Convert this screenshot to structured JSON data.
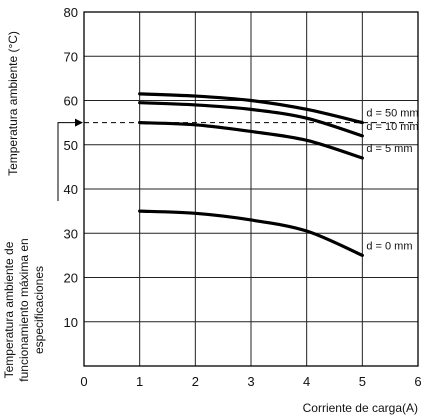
{
  "chart_data": {
    "type": "line",
    "xlabel": "Corriente de carga(A)",
    "ylabel": "Temperatura ambiente (°C)",
    "spec_label_lines": [
      "Temperatura ambiente de",
      "funcionamiento máxima en",
      "especificaciones"
    ],
    "x_ticks": [
      0,
      1,
      2,
      3,
      4,
      5,
      6
    ],
    "y_ticks": [
      10,
      20,
      30,
      40,
      50,
      60,
      70,
      80
    ],
    "xlim": [
      0,
      6
    ],
    "ylim": [
      0,
      80
    ],
    "grid": true,
    "series": [
      {
        "name": "d = 50 mm",
        "x": [
          1,
          2,
          3,
          4,
          5
        ],
        "y": [
          61.5,
          61,
          60,
          58,
          55
        ]
      },
      {
        "name": "d = 10 mm",
        "x": [
          1,
          2,
          3,
          4,
          5
        ],
        "y": [
          59.5,
          59,
          58,
          56,
          52
        ]
      },
      {
        "name": "d = 5 mm",
        "x": [
          1,
          2,
          3,
          4,
          5
        ],
        "y": [
          55,
          54.5,
          53,
          51,
          47
        ]
      },
      {
        "name": "d = 0 mm",
        "x": [
          1,
          2,
          3,
          4,
          5
        ],
        "y": [
          35,
          34.5,
          33,
          30.5,
          25
        ]
      }
    ],
    "spec_temperature": 55
  }
}
